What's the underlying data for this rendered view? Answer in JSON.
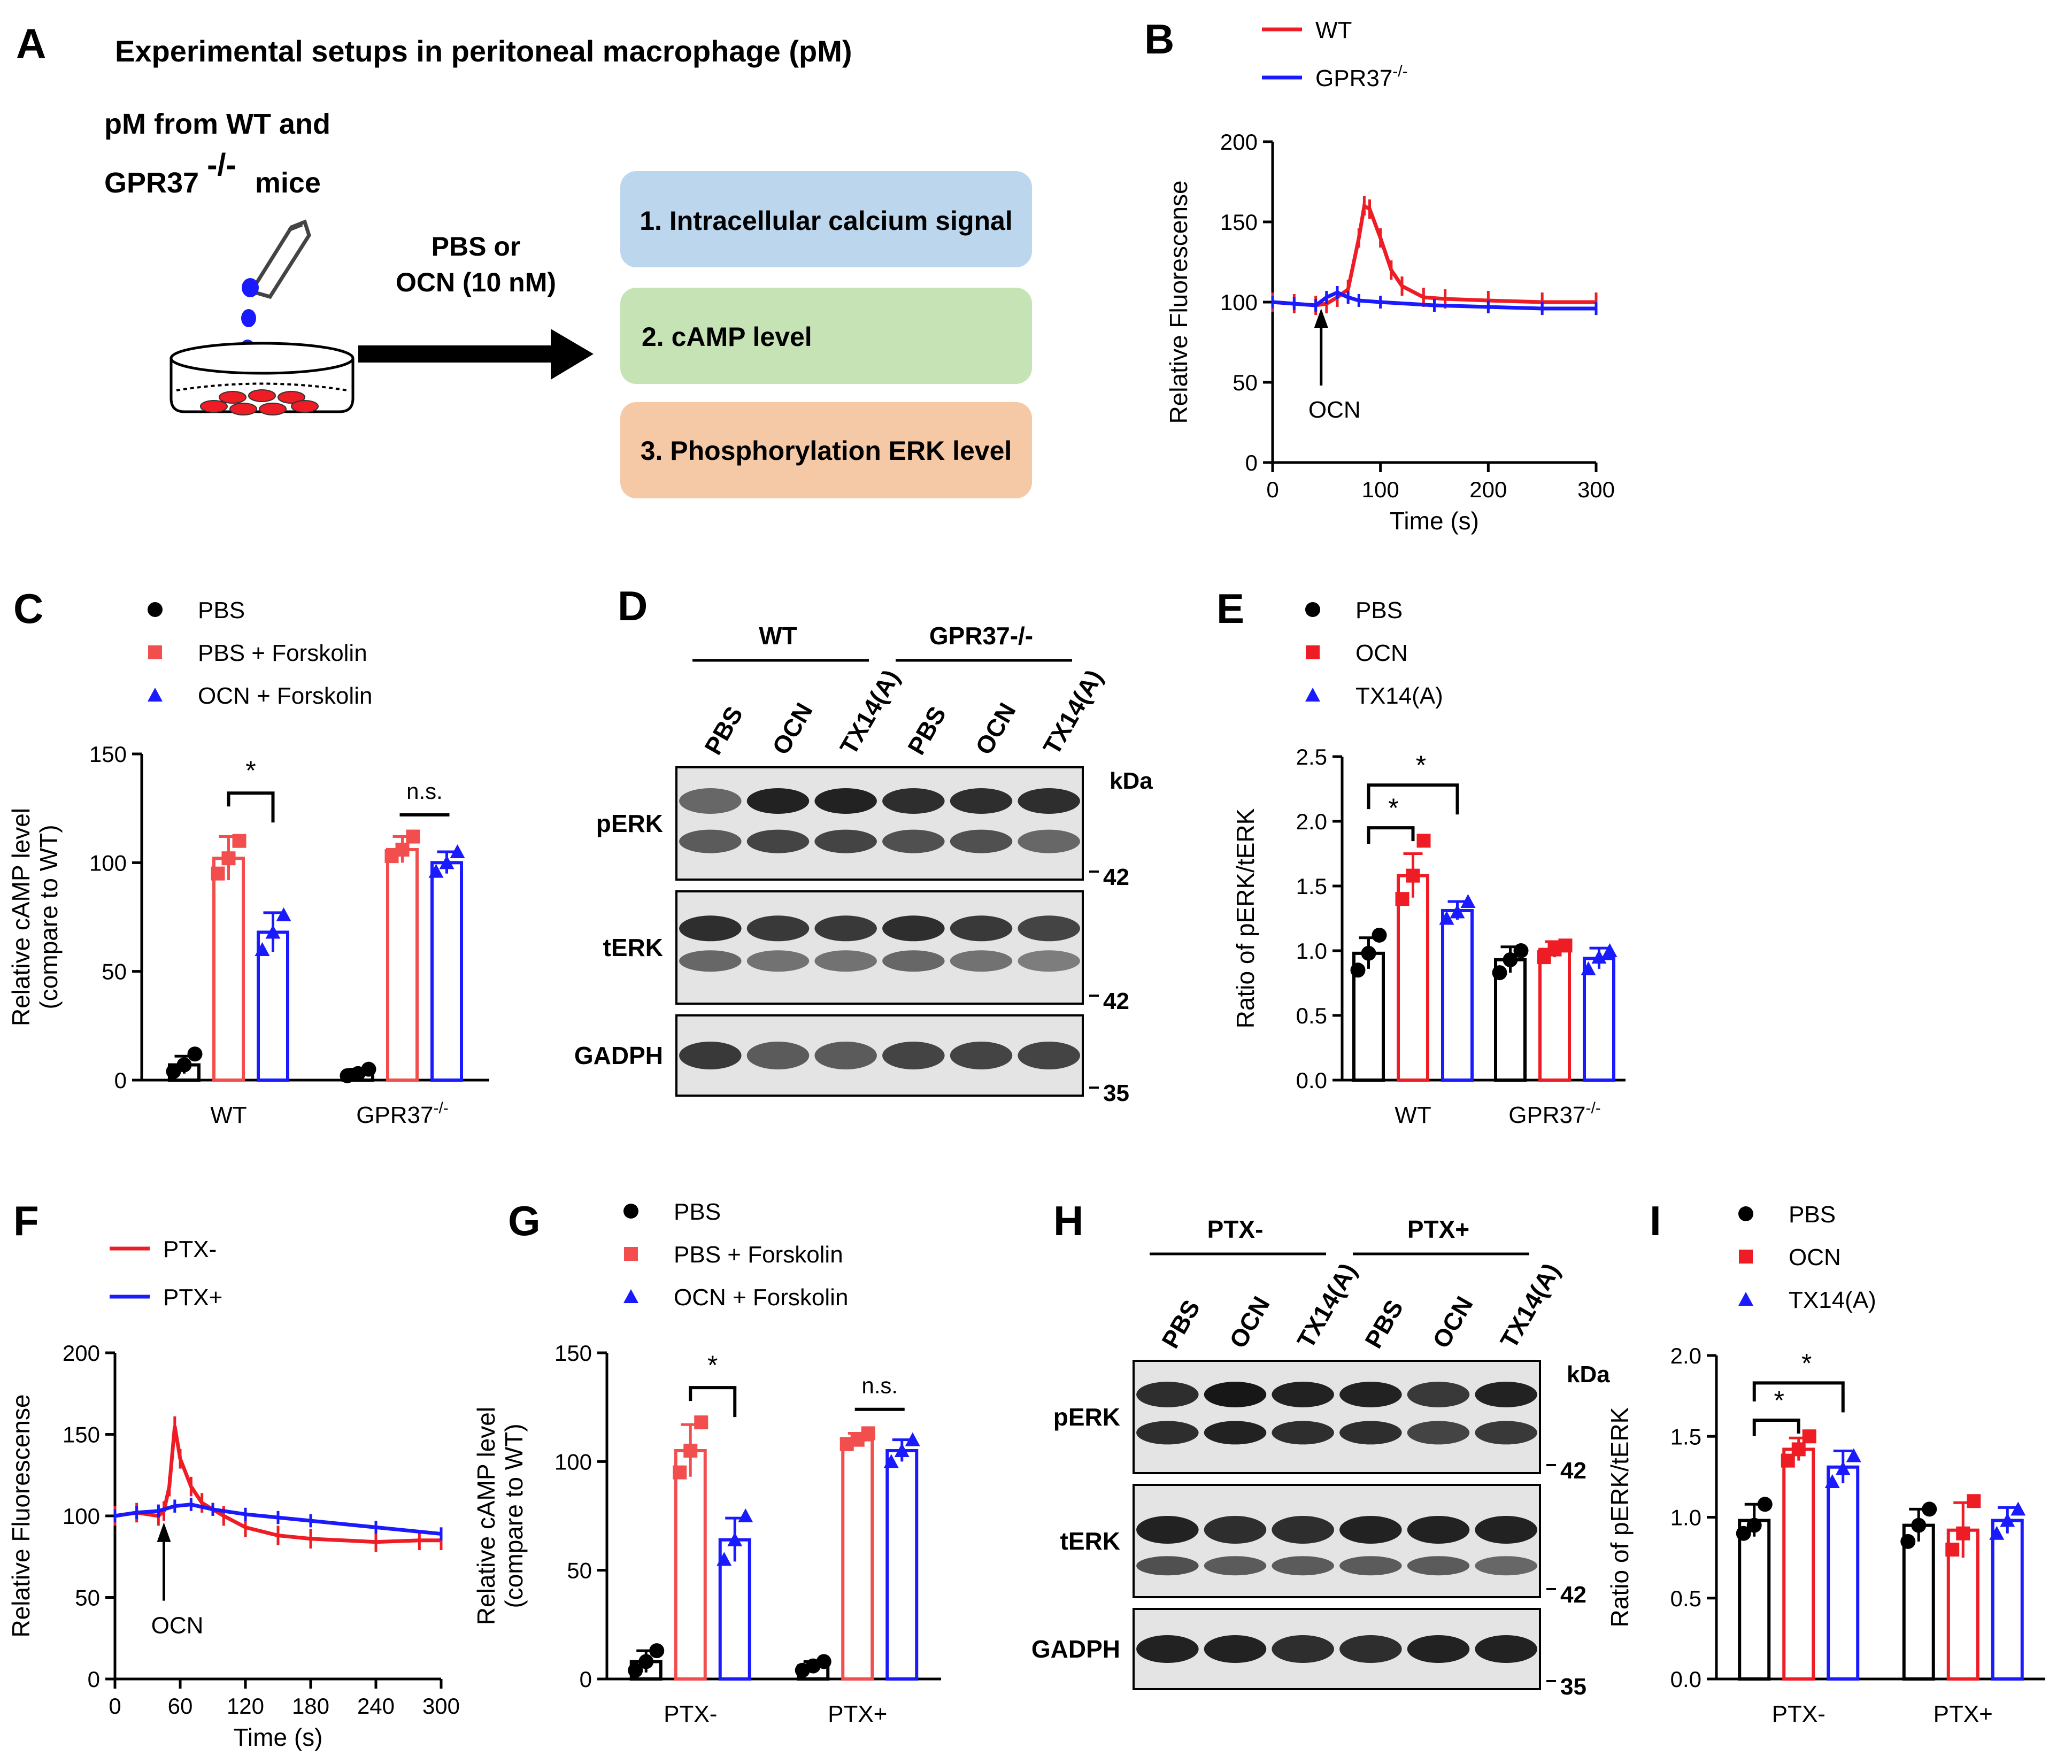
{
  "colors": {
    "wt": "#ee1c25",
    "ko": "#1a1aff",
    "black": "#000000",
    "box1": "#bcd6ee",
    "box2": "#c6e3b5",
    "box3": "#f6c9a6",
    "pbs": "#000000",
    "forsk": "#f24e4e",
    "ocnf": "#1a1aff"
  },
  "panels": {
    "A": {
      "letter": "A",
      "title": "Experimental setups in peritoneal  macrophage (pM)",
      "source_line1": "pM from WT and",
      "source_line2": "GPR37",
      "source_sup": "-/-",
      "source_mice": "mice",
      "treatment_line1": "PBS or",
      "treatment_line2": "OCN (10 nM)",
      "assays": [
        "1. Intracellular calcium signal",
        "2. cAMP level",
        "3. Phosphorylation ERK level"
      ]
    },
    "B": {
      "letter": "B",
      "annotation": "OCN"
    },
    "C": {
      "letter": "C",
      "sig": "*",
      "ns": "n.s."
    },
    "D": {
      "letter": "D",
      "groups": [
        "WT",
        "GPR37-/-"
      ],
      "lanes": [
        "PBS",
        "OCN",
        "TX14(A)",
        "PBS",
        "OCN",
        "TX14(A)"
      ],
      "kda": "kDa",
      "blots": [
        {
          "label": "pERK",
          "marker": "42"
        },
        {
          "label": "tERK",
          "marker": "42"
        },
        {
          "label": "GADPH",
          "marker": "35"
        }
      ]
    },
    "E": {
      "letter": "E",
      "sig1": "*",
      "sig2": "*"
    },
    "F": {
      "letter": "F",
      "annotation": "OCN"
    },
    "G": {
      "letter": "G",
      "sig": "*",
      "ns": "n.s."
    },
    "H": {
      "letter": "H",
      "groups": [
        "PTX-",
        "PTX+"
      ],
      "lanes": [
        "PBS",
        "OCN",
        "TX14(A)",
        "PBS",
        "OCN",
        "TX14(A)"
      ],
      "kda": "kDa",
      "blots": [
        {
          "label": "pERK",
          "marker": "42"
        },
        {
          "label": "tERK",
          "marker": "42"
        },
        {
          "label": "GADPH",
          "marker": "35"
        }
      ]
    },
    "I": {
      "letter": "I",
      "sig1": "*",
      "sig2": "*"
    }
  },
  "chart_data": [
    {
      "panel": "B",
      "type": "line",
      "xlabel": "Time (s)",
      "ylabel": "Relative Fluorescense",
      "xlim": [
        0,
        300
      ],
      "ylim": [
        0,
        200
      ],
      "xticks": [
        "0",
        "100",
        "200",
        "300"
      ],
      "yticks": [
        "0",
        "50",
        "100",
        "150",
        "200"
      ],
      "legend": [
        "WT",
        "GPR37"
      ],
      "legend_sup": [
        "",
        "-/-"
      ],
      "series": [
        {
          "name": "WT",
          "x": [
            0,
            20,
            40,
            50,
            60,
            70,
            80,
            85,
            90,
            100,
            110,
            120,
            140,
            160,
            200,
            250,
            300
          ],
          "y": [
            100,
            99,
            98,
            99,
            103,
            108,
            140,
            160,
            158,
            140,
            120,
            110,
            103,
            102,
            101,
            100,
            100
          ]
        },
        {
          "name": "GPR37-/-",
          "x": [
            0,
            20,
            40,
            50,
            60,
            70,
            80,
            100,
            150,
            200,
            250,
            300
          ],
          "y": [
            100,
            99,
            98,
            103,
            106,
            103,
            101,
            100,
            98,
            97,
            96,
            96
          ]
        }
      ]
    },
    {
      "panel": "C",
      "type": "bar",
      "ylabel": "Relative cAMP level",
      "ylabel2": "(compare to WT)",
      "ylim": [
        0,
        150
      ],
      "yticks": [
        "0",
        "50",
        "100",
        "150"
      ],
      "categories": [
        "WT",
        "GPR37"
      ],
      "category_sup": [
        "",
        "-/-"
      ],
      "legend": [
        "PBS",
        "PBS + Forskolin",
        "OCN + Forskolin"
      ],
      "series": [
        {
          "name": "PBS",
          "values": [
            7,
            3
          ],
          "err": [
            4,
            2
          ],
          "points": [
            [
              4,
              7,
              12
            ],
            [
              2,
              3,
              5
            ]
          ]
        },
        {
          "name": "PBS + Forskolin",
          "values": [
            102,
            106
          ],
          "err": [
            10,
            6
          ],
          "points": [
            [
              95,
              102,
              110
            ],
            [
              103,
              106,
              112
            ]
          ]
        },
        {
          "name": "OCN + Forskolin",
          "values": [
            68,
            100
          ],
          "err": [
            9,
            5
          ],
          "points": [
            [
              60,
              68,
              76
            ],
            [
              96,
              100,
              105
            ]
          ]
        }
      ]
    },
    {
      "panel": "E",
      "type": "bar",
      "ylabel": "Ratio of pERK/tERK",
      "ylim": [
        0,
        2.5
      ],
      "yticks": [
        "0.0",
        "0.5",
        "1.0",
        "1.5",
        "2.0",
        "2.5"
      ],
      "categories": [
        "WT",
        "GPR37"
      ],
      "category_sup": [
        "",
        "-/-"
      ],
      "legend": [
        "PBS",
        "OCN",
        "TX14(A)"
      ],
      "series": [
        {
          "name": "PBS",
          "values": [
            0.98,
            0.93
          ],
          "err": [
            0.12,
            0.1
          ],
          "points": [
            [
              0.85,
              0.98,
              1.12
            ],
            [
              0.83,
              0.93,
              1.0
            ]
          ]
        },
        {
          "name": "OCN",
          "values": [
            1.58,
            1.01
          ],
          "err": [
            0.17,
            0.06
          ],
          "points": [
            [
              1.4,
              1.58,
              1.85
            ],
            [
              0.95,
              1.01,
              1.04
            ]
          ]
        },
        {
          "name": "TX14(A)",
          "values": [
            1.31,
            0.94
          ],
          "err": [
            0.07,
            0.08
          ],
          "points": [
            [
              1.25,
              1.3,
              1.38
            ],
            [
              0.86,
              0.95,
              1.0
            ]
          ]
        }
      ]
    },
    {
      "panel": "F",
      "type": "line",
      "xlabel": "Time (s)",
      "ylabel": "Relative Fluorescense",
      "xlim": [
        0,
        300
      ],
      "ylim": [
        0,
        200
      ],
      "xticks": [
        "0",
        "60",
        "120",
        "180",
        "240",
        "300"
      ],
      "yticks": [
        "0",
        "50",
        "100",
        "150",
        "200"
      ],
      "legend": [
        "PTX-",
        "PTX+"
      ],
      "series": [
        {
          "name": "PTX-",
          "x": [
            0,
            20,
            40,
            45,
            50,
            55,
            60,
            70,
            80,
            100,
            120,
            150,
            180,
            240,
            280,
            300
          ],
          "y": [
            100,
            102,
            100,
            103,
            118,
            155,
            135,
            118,
            108,
            100,
            93,
            88,
            86,
            84,
            85,
            85
          ]
        },
        {
          "name": "PTX+",
          "x": [
            0,
            20,
            40,
            55,
            70,
            90,
            120,
            150,
            180,
            240,
            300
          ],
          "y": [
            100,
            102,
            103,
            106,
            107,
            104,
            101,
            99,
            97,
            93,
            89
          ]
        }
      ]
    },
    {
      "panel": "G",
      "type": "bar",
      "ylabel": "Relative cAMP level",
      "ylabel2": "(compare to WT)",
      "ylim": [
        0,
        150
      ],
      "yticks": [
        "0",
        "50",
        "100",
        "150"
      ],
      "categories": [
        "PTX-",
        "PTX+"
      ],
      "category_sup": [
        "",
        ""
      ],
      "legend": [
        "PBS",
        "PBS + Forskolin",
        "OCN + Forskolin"
      ],
      "series": [
        {
          "name": "PBS",
          "values": [
            8,
            6
          ],
          "err": [
            5,
            2
          ],
          "points": [
            [
              4,
              8,
              13
            ],
            [
              4,
              6,
              8
            ]
          ]
        },
        {
          "name": "PBS + Forskolin",
          "values": [
            105,
            110
          ],
          "err": [
            12,
            3
          ],
          "points": [
            [
              95,
              105,
              118
            ],
            [
              108,
              110,
              113
            ]
          ]
        },
        {
          "name": "OCN + Forskolin",
          "values": [
            64,
            105
          ],
          "err": [
            10,
            5
          ],
          "points": [
            [
              55,
              64,
              75
            ],
            [
              100,
              105,
              110
            ]
          ]
        }
      ]
    },
    {
      "panel": "I",
      "type": "bar",
      "ylabel": "Ratio of pERK/tERK",
      "ylim": [
        0,
        2.0
      ],
      "yticks": [
        "0.0",
        "0.5",
        "1.0",
        "1.5",
        "2.0"
      ],
      "categories": [
        "PTX-",
        "PTX+"
      ],
      "category_sup": [
        "",
        ""
      ],
      "legend": [
        "PBS",
        "OCN",
        "TX14(A)"
      ],
      "series": [
        {
          "name": "PBS",
          "values": [
            0.98,
            0.95
          ],
          "err": [
            0.1,
            0.1
          ],
          "points": [
            [
              0.9,
              0.95,
              1.08
            ],
            [
              0.85,
              0.95,
              1.05
            ]
          ]
        },
        {
          "name": "OCN",
          "values": [
            1.42,
            0.92
          ],
          "err": [
            0.07,
            0.17
          ],
          "points": [
            [
              1.35,
              1.42,
              1.5
            ],
            [
              0.8,
              0.9,
              1.1
            ]
          ]
        },
        {
          "name": "TX14(A)",
          "values": [
            1.31,
            0.98
          ],
          "err": [
            0.1,
            0.08
          ],
          "points": [
            [
              1.22,
              1.3,
              1.38
            ],
            [
              0.9,
              0.98,
              1.05
            ]
          ]
        }
      ]
    }
  ]
}
